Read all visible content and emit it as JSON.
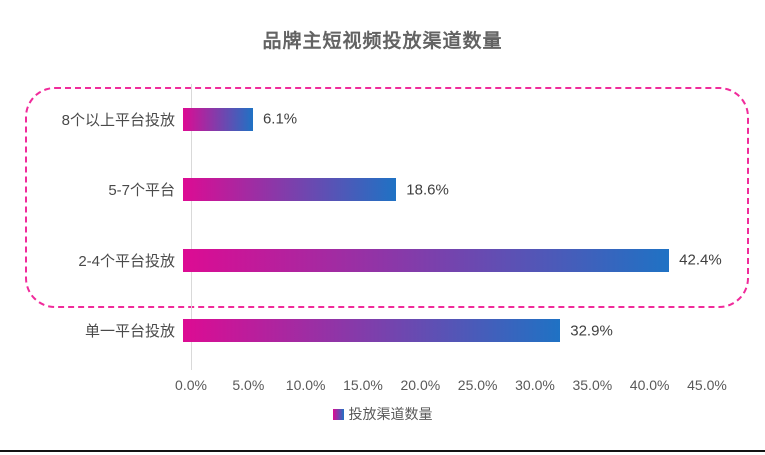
{
  "title": "品牌主短视频投放渠道数量",
  "chart_data": {
    "type": "bar",
    "orientation": "horizontal",
    "title": "品牌主短视频投放渠道数量",
    "categories": [
      "8个以上平台投放",
      "5-7个平台",
      "2-4个平台投放",
      "单一平台投放"
    ],
    "values": [
      6.1,
      18.6,
      42.4,
      32.9
    ],
    "value_labels": [
      "6.1%",
      "18.6%",
      "42.4%",
      "32.9%"
    ],
    "xlim": [
      0,
      45
    ],
    "x_ticks": [
      "0.0%",
      "5.0%",
      "10.0%",
      "15.0%",
      "20.0%",
      "25.0%",
      "30.0%",
      "35.0%",
      "40.0%",
      "45.0%"
    ],
    "grid": "single vertical axis line at 0%",
    "legend": {
      "label": "投放渠道数量",
      "position": "bottom-center",
      "marker": "gradient-square"
    },
    "bar_gradient": [
      "#dd0b93",
      "#1f72c4"
    ],
    "annotation": "dashed magenta rounded rectangle highlighting the top three bars (multi-platform rows)"
  },
  "colors": {
    "bar_start": "#dd0b93",
    "bar_end": "#1f72c4",
    "highlight_border": "#f02b9b",
    "title_text": "#636363",
    "axis_text": "#595959",
    "category_text": "#4a4a4a",
    "value_text": "#3f3f3f",
    "axis_line": "#d9d9d9",
    "bottom_rule": "#141414",
    "background": "#ffffff"
  }
}
